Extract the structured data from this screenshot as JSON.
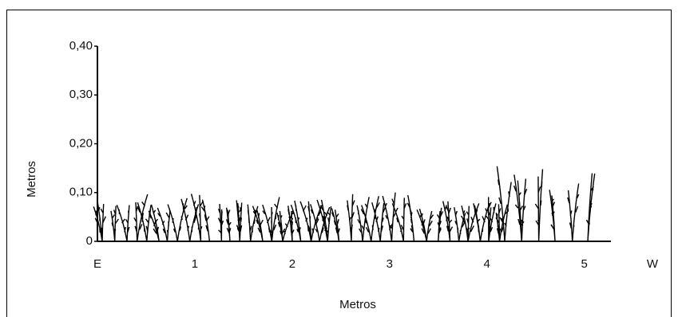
{
  "chart_data": {
    "type": "profile",
    "xlabel": "Metros",
    "ylabel": "Metros",
    "xlim": [
      0,
      5.7
    ],
    "xticks": [
      {
        "value": 0,
        "label": "E"
      },
      1,
      2,
      3,
      4,
      5,
      {
        "value": 5.7,
        "label": "W"
      }
    ],
    "ylim": [
      0,
      0.4
    ],
    "yticks": [
      {
        "value": 0,
        "label": "0"
      },
      {
        "value": 0.1,
        "label": "0,10"
      },
      {
        "value": 0.2,
        "label": "0,20"
      },
      {
        "value": 0.3,
        "label": "0,30"
      },
      {
        "value": 0.4,
        "label": "0,40"
      }
    ],
    "color": "#000000"
  }
}
